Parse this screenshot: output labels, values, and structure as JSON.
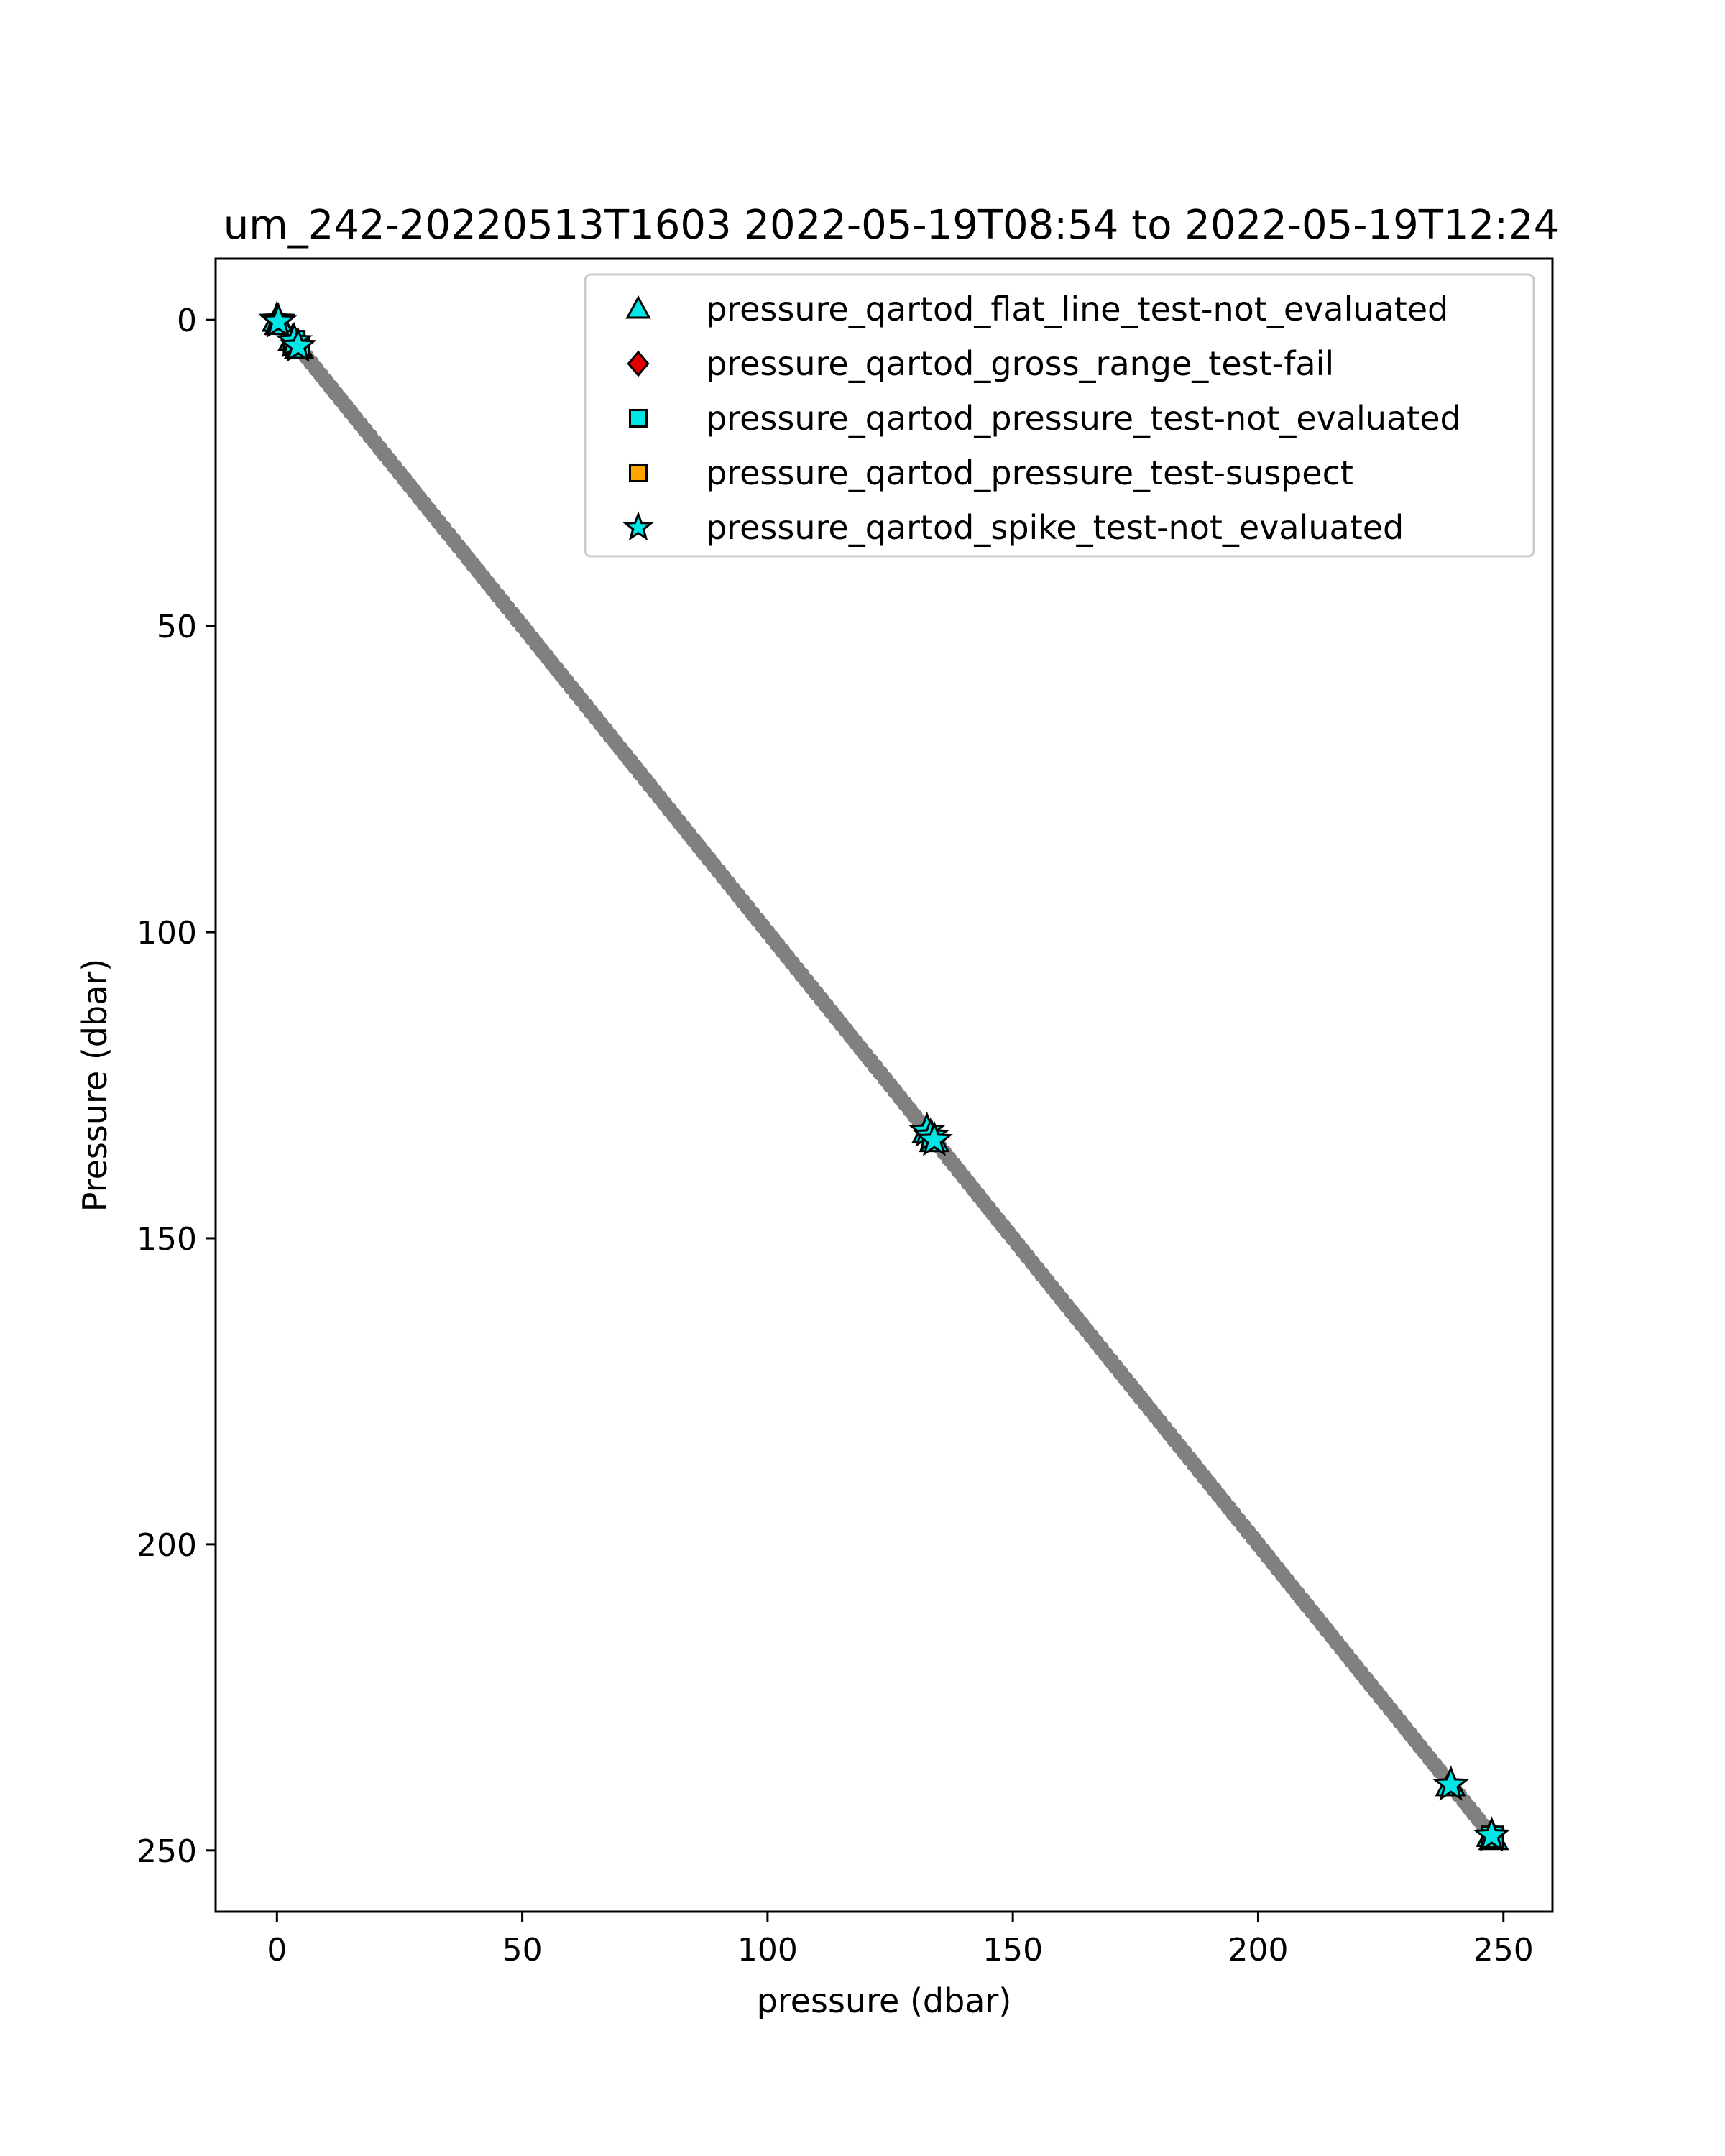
{
  "chart_data": {
    "type": "scatter",
    "title": "um_242-20220513T1603 2022-05-19T08:54 to 2022-05-19T12:24",
    "xlabel": "pressure (dbar)",
    "ylabel": "Pressure (dbar)",
    "xlim": [
      -12.5,
      260
    ],
    "ylim": [
      260,
      -10
    ],
    "y_inverted": true,
    "grid": false,
    "legend_position": "upper right",
    "xticks": [
      {
        "value": 0,
        "label": "0"
      },
      {
        "value": 50,
        "label": "50"
      },
      {
        "value": 100,
        "label": "100"
      },
      {
        "value": 150,
        "label": "150"
      },
      {
        "value": 200,
        "label": "200"
      },
      {
        "value": 250,
        "label": "250"
      }
    ],
    "yticks": [
      {
        "value": 0,
        "label": "0"
      },
      {
        "value": 50,
        "label": "50"
      },
      {
        "value": 100,
        "label": "100"
      },
      {
        "value": 150,
        "label": "150"
      },
      {
        "value": 200,
        "label": "200"
      },
      {
        "value": 250,
        "label": "250"
      }
    ],
    "base_series": {
      "color": "#808080",
      "x_start": 0,
      "x_end": 248,
      "x_step": 1,
      "relation": "y = x"
    },
    "series": [
      {
        "name": "pressure_qartod_flat_line_test-not_evaluated",
        "marker": "triangle",
        "color": "#00e5e5",
        "points": [
          [
            0,
            0
          ],
          [
            0.5,
            0.5
          ],
          [
            3.2,
            3.2
          ],
          [
            4.0,
            4.0
          ],
          [
            4.5,
            4.5
          ],
          [
            132.5,
            132.5
          ],
          [
            134.0,
            134.0
          ],
          [
            239.2,
            239.2
          ],
          [
            247.5,
            247.5
          ],
          [
            248.0,
            248.0
          ]
        ]
      },
      {
        "name": "pressure_qartod_gross_range_test-fail",
        "marker": "diamond",
        "color": "#e00000",
        "points": []
      },
      {
        "name": "pressure_qartod_pressure_test-not_evaluated",
        "marker": "square",
        "color": "#00e5e5",
        "points": [
          [
            3.5,
            3.5
          ],
          [
            4.5,
            4.5
          ],
          [
            247.8,
            247.8
          ]
        ]
      },
      {
        "name": "pressure_qartod_pressure_test-suspect",
        "marker": "square",
        "color": "#ffa500",
        "points": []
      },
      {
        "name": "pressure_qartod_spike_test-not_evaluated",
        "marker": "star",
        "color": "#00e5e5",
        "points": [
          [
            0,
            0
          ],
          [
            0.3,
            0.3
          ],
          [
            3.5,
            3.5
          ],
          [
            4.3,
            4.3
          ],
          [
            132.5,
            132.5
          ],
          [
            133.3,
            133.3
          ],
          [
            134.0,
            134.0
          ],
          [
            239.3,
            239.3
          ],
          [
            247.6,
            247.6
          ]
        ]
      }
    ]
  }
}
